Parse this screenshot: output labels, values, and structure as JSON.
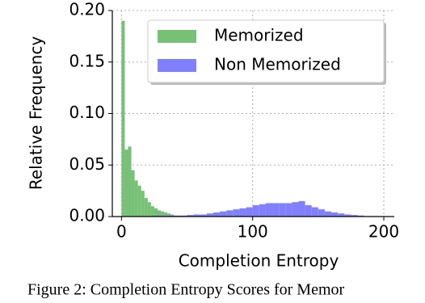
{
  "chart_data": {
    "type": "histogram",
    "xlabel": "Completion Entropy",
    "ylabel": "Relative Frequency",
    "caption": "Figure 2: Completion Entropy Scores for Memor",
    "xlim": [
      -7,
      208
    ],
    "ylim": [
      0,
      0.2
    ],
    "xticks": [
      0,
      100,
      200
    ],
    "yticks": [
      {
        "value": 0,
        "label": "0.00"
      },
      {
        "value": 0.05,
        "label": "0.05"
      },
      {
        "value": 0.1,
        "label": "0.10"
      },
      {
        "value": 0.15,
        "label": "0.15"
      },
      {
        "value": 0.2,
        "label": "0.20"
      }
    ],
    "grid": true,
    "legend": "upper right",
    "series": [
      {
        "name": "Memorized",
        "color": "#77c177",
        "bins": [
          0,
          2.5,
          5,
          7.5,
          10,
          12.5,
          15,
          17.5,
          20,
          22.5,
          25,
          27.5,
          30,
          32.5,
          35,
          37.5,
          40
        ],
        "values": [
          0.19,
          0.065,
          0.068,
          0.045,
          0.035,
          0.03,
          0.025,
          0.018,
          0.014,
          0.01,
          0.008,
          0.006,
          0.005,
          0.004,
          0.003,
          0.002
        ]
      },
      {
        "name": "Non Memorized",
        "color": "#8080ff",
        "bins": [
          25,
          30,
          35,
          40,
          45,
          50,
          55,
          60,
          65,
          70,
          75,
          80,
          85,
          90,
          95,
          100,
          105,
          110,
          115,
          120,
          125,
          130,
          135,
          140,
          145,
          150,
          155,
          160,
          165,
          170,
          175,
          180,
          185
        ],
        "values": [
          0.001,
          0.001,
          0.001,
          0.001,
          0.001,
          0.0015,
          0.002,
          0.002,
          0.003,
          0.004,
          0.005,
          0.006,
          0.007,
          0.008,
          0.009,
          0.011,
          0.012,
          0.013,
          0.013,
          0.013,
          0.013,
          0.014,
          0.015,
          0.011,
          0.009,
          0.007,
          0.005,
          0.004,
          0.003,
          0.002,
          0.0015,
          0.001
        ]
      }
    ]
  }
}
